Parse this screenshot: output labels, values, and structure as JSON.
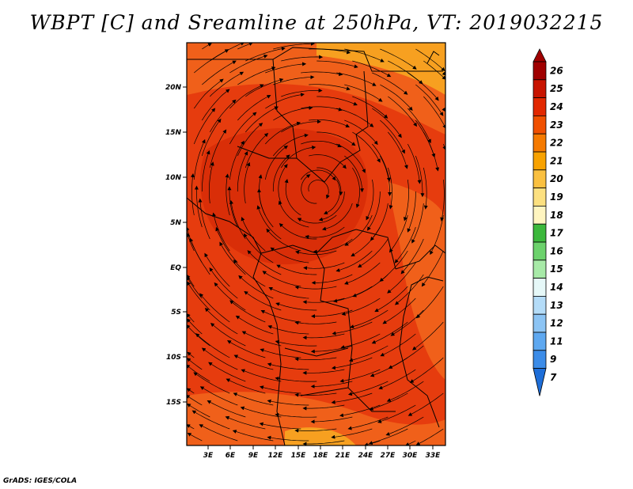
{
  "title": "WBPT [C] and Sreamline at 250hPa, VT: 2019032215",
  "credit": "GrADS: IGES/COLA",
  "map": {
    "lat_ticks": [
      "20N",
      "15N",
      "10N",
      "5N",
      "EQ",
      "5S",
      "10S",
      "15S"
    ],
    "lon_ticks": [
      "3E",
      "6E",
      "9E",
      "12E",
      "15E",
      "18E",
      "21E",
      "24E",
      "27E",
      "30E",
      "33E"
    ]
  },
  "colorbar": {
    "labels": [
      "26",
      "25",
      "24",
      "23",
      "22",
      "21",
      "20",
      "19",
      "18",
      "17",
      "16",
      "15",
      "14",
      "13",
      "12",
      "11",
      "9",
      "7"
    ],
    "colors": [
      "#a00000",
      "#c81400",
      "#e22800",
      "#f05000",
      "#f57a00",
      "#f8a200",
      "#fac040",
      "#fce080",
      "#fff5c0",
      "#3cb83c",
      "#6cd26c",
      "#a8eaa8",
      "#e6f8f8",
      "#b4dcf8",
      "#8cc4f4",
      "#5ea8f0",
      "#3c8ce8",
      "#1e6ed8"
    ]
  },
  "field_colors": {
    "dominant": "#e63c0e",
    "warm_core": "#d92e08",
    "moderate": "#f0601a",
    "cooler": "#f7a020"
  }
}
